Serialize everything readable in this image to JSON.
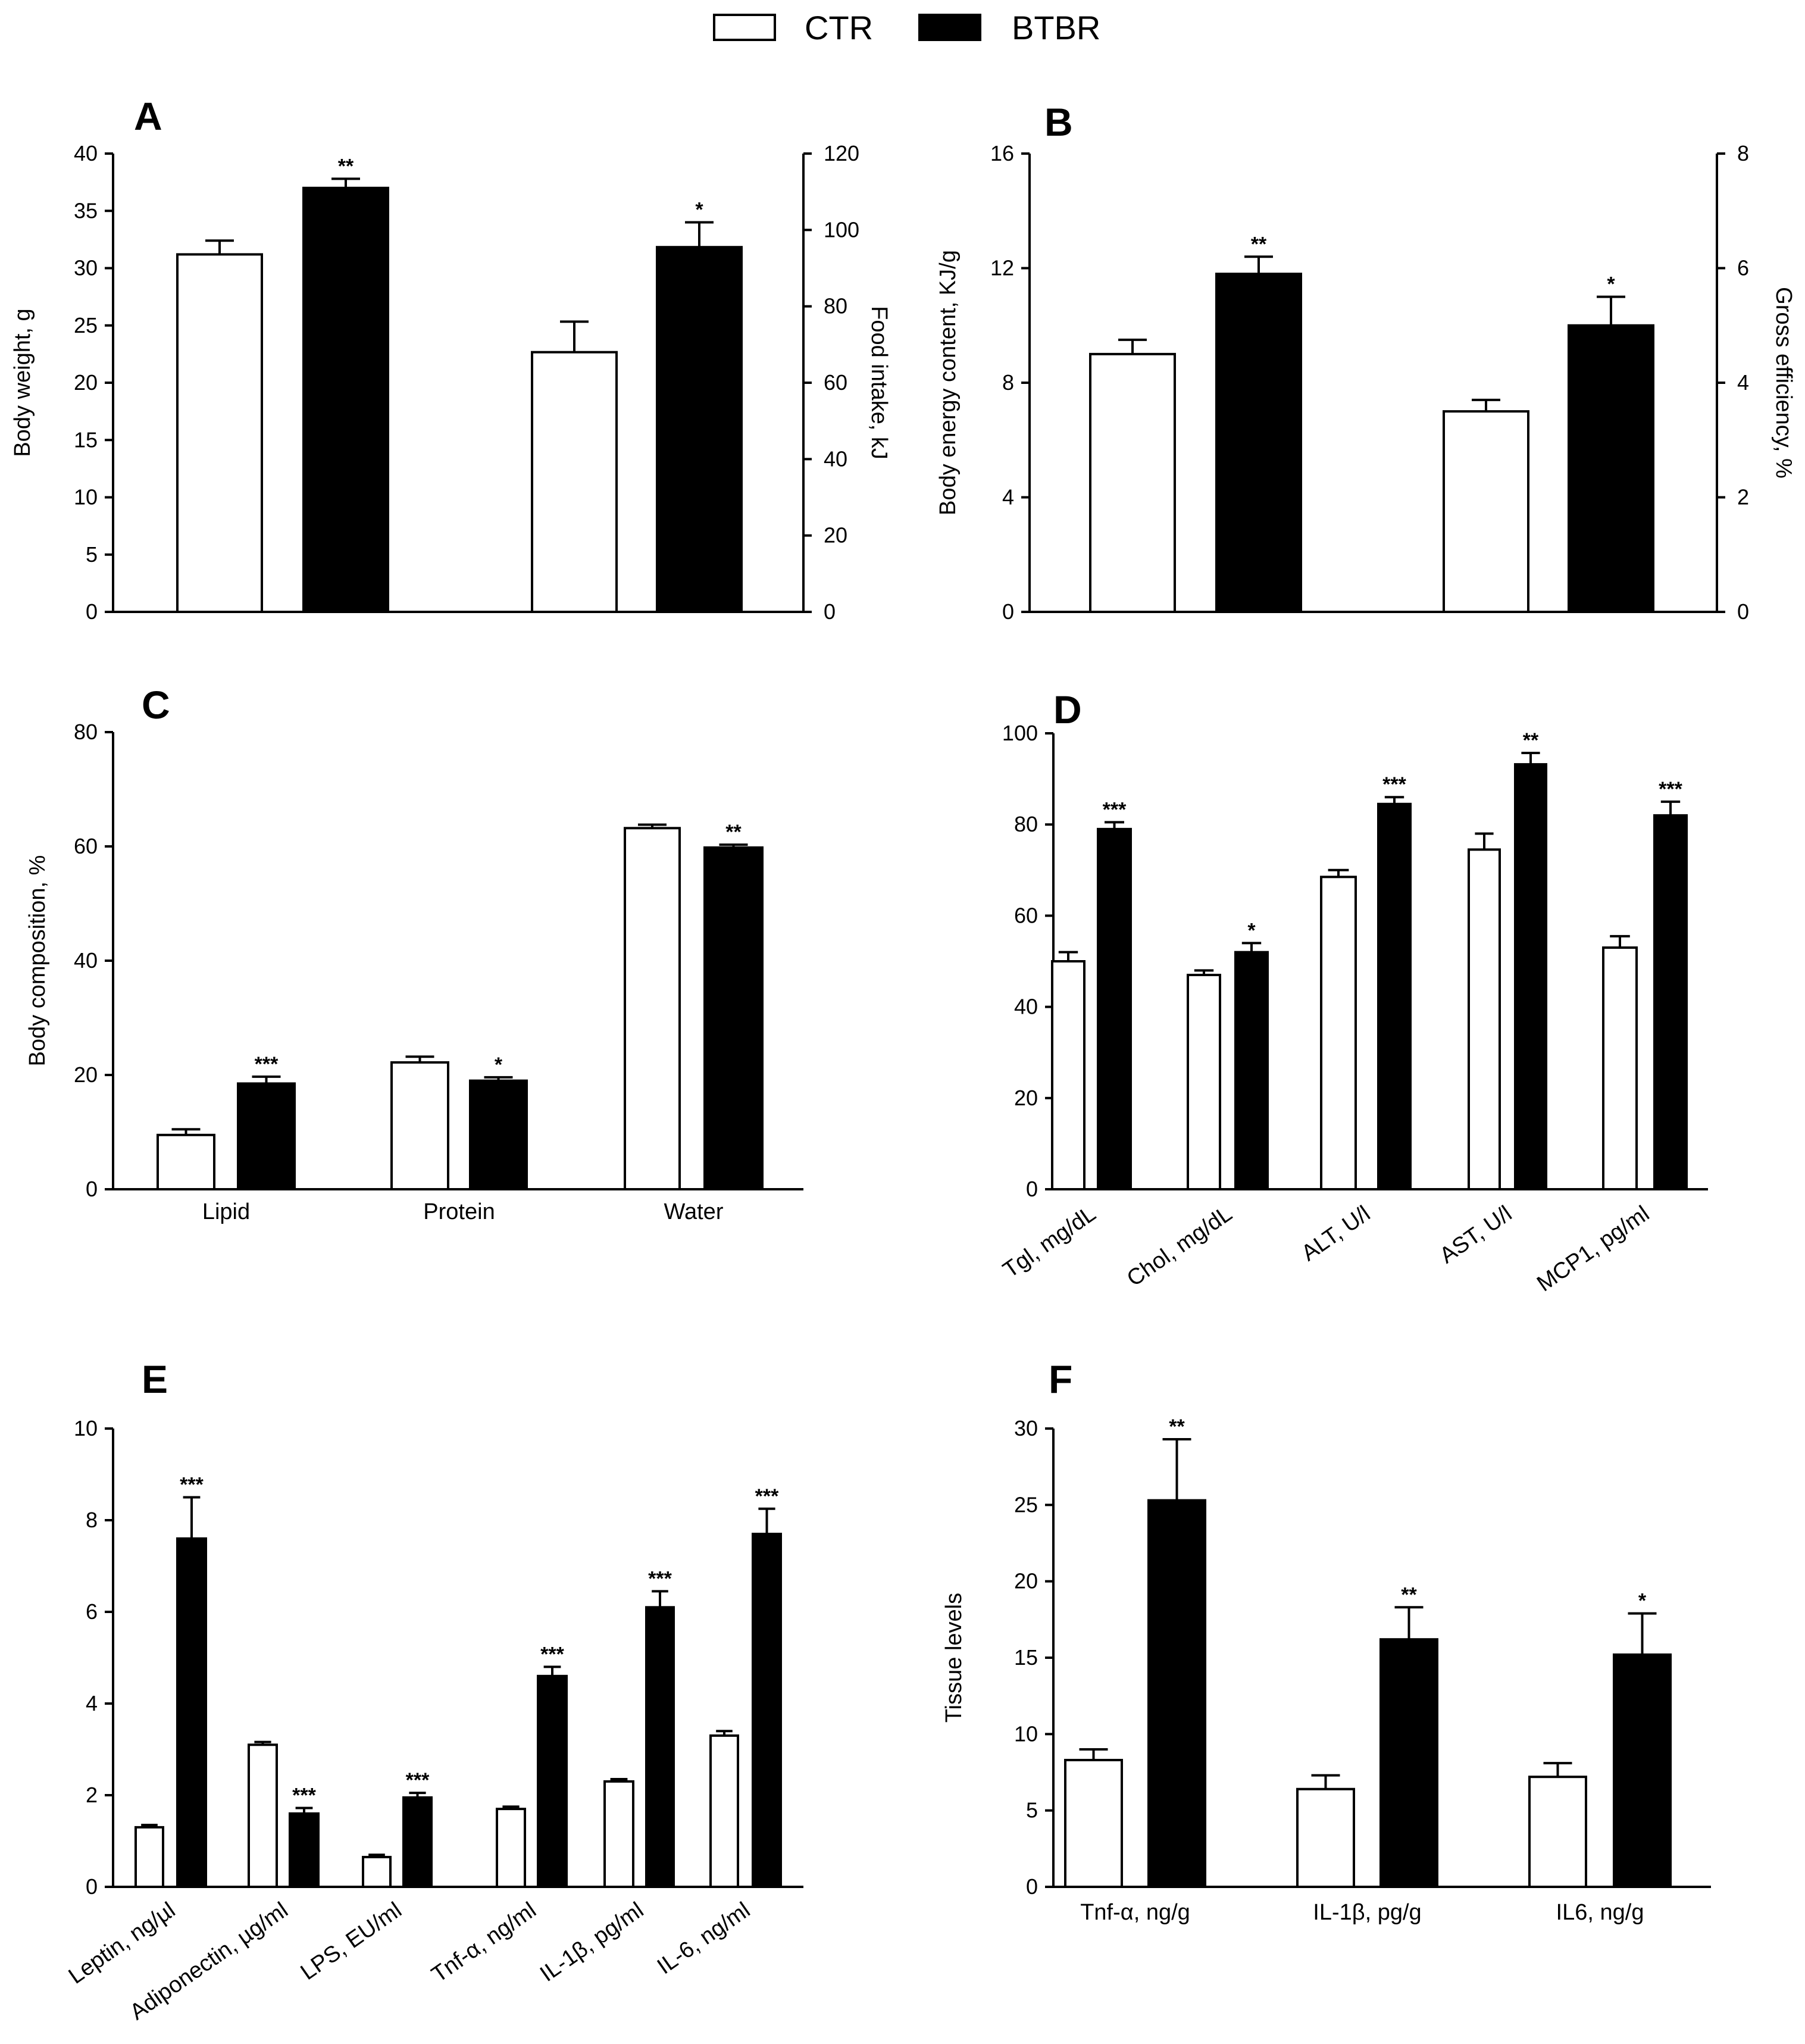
{
  "legend": {
    "items": [
      {
        "label": "CTR",
        "fill": "#ffffff"
      },
      {
        "label": "BTBR",
        "fill": "#000000"
      }
    ]
  },
  "colors": {
    "ctr": "#ffffff",
    "btbr": "#000000",
    "stroke": "#000000"
  },
  "chart_data": [
    {
      "id": "A",
      "type": "bar",
      "panel_label": "A",
      "ylabel": "Body weight, g",
      "yticks": [
        0,
        5,
        10,
        15,
        20,
        25,
        30,
        35,
        40
      ],
      "ylim": [
        0,
        40
      ],
      "ylabel_right": "Food intake, kJ",
      "yticks_right": [
        0,
        20,
        40,
        60,
        80,
        100,
        120
      ],
      "ylim_right": [
        0,
        120
      ],
      "groups": [
        {
          "name": "Body weight",
          "axis": "left",
          "label": "",
          "ctr": {
            "value": 31.2,
            "err": 1.2,
            "sig": ""
          },
          "btbr": {
            "value": 37.0,
            "err": 0.8,
            "sig": "**"
          }
        },
        {
          "name": "Food intake",
          "axis": "right",
          "label": "",
          "ctr": {
            "value": 68,
            "err": 8,
            "sig": ""
          },
          "btbr": {
            "value": 95.5,
            "err": 6.5,
            "sig": "*"
          }
        }
      ]
    },
    {
      "id": "B",
      "type": "bar",
      "panel_label": "B",
      "ylabel": "Body energy content, KJ/g",
      "yticks": [
        0,
        4,
        8,
        12,
        16
      ],
      "ylim": [
        0,
        16
      ],
      "ylabel_right": "Gross efficiency, %",
      "yticks_right": [
        0,
        2,
        4,
        6,
        8
      ],
      "ylim_right": [
        0,
        8
      ],
      "groups": [
        {
          "name": "Body energy content",
          "axis": "left",
          "label": "",
          "ctr": {
            "value": 9.0,
            "err": 0.5,
            "sig": ""
          },
          "btbr": {
            "value": 11.8,
            "err": 0.6,
            "sig": "**"
          }
        },
        {
          "name": "Gross efficiency",
          "axis": "right",
          "label": "",
          "ctr": {
            "value": 3.5,
            "err": 0.2,
            "sig": ""
          },
          "btbr": {
            "value": 5.0,
            "err": 0.5,
            "sig": "*"
          }
        }
      ]
    },
    {
      "id": "C",
      "type": "bar",
      "panel_label": "C",
      "ylabel": "Body composition, %",
      "yticks": [
        0,
        20,
        40,
        60,
        80
      ],
      "ylim": [
        0,
        80
      ],
      "groups": [
        {
          "name": "Lipid",
          "label": "Lipid",
          "ctr": {
            "value": 9.5,
            "err": 1.0,
            "sig": ""
          },
          "btbr": {
            "value": 18.5,
            "err": 1.2,
            "sig": "***"
          }
        },
        {
          "name": "Protein",
          "label": "Protein",
          "ctr": {
            "value": 22.2,
            "err": 1.0,
            "sig": ""
          },
          "btbr": {
            "value": 19.0,
            "err": 0.6,
            "sig": "*"
          }
        },
        {
          "name": "Water",
          "label": "Water",
          "ctr": {
            "value": 63.2,
            "err": 0.6,
            "sig": ""
          },
          "btbr": {
            "value": 59.8,
            "err": 0.5,
            "sig": "**"
          }
        }
      ]
    },
    {
      "id": "D",
      "type": "bar",
      "panel_label": "D",
      "ylabel": "",
      "yticks": [
        0,
        20,
        40,
        60,
        80,
        100
      ],
      "ylim": [
        0,
        100
      ],
      "groups": [
        {
          "name": "Tgl",
          "label": "Tgl, mg/dL",
          "ctr": {
            "value": 50,
            "err": 2,
            "sig": ""
          },
          "btbr": {
            "value": 79,
            "err": 1.5,
            "sig": "***"
          }
        },
        {
          "name": "Chol",
          "label": "Chol, mg/dL",
          "ctr": {
            "value": 47,
            "err": 1,
            "sig": ""
          },
          "btbr": {
            "value": 52,
            "err": 2,
            "sig": "*"
          }
        },
        {
          "name": "ALT",
          "label": "ALT, U/l",
          "ctr": {
            "value": 68.5,
            "err": 1.5,
            "sig": ""
          },
          "btbr": {
            "value": 84.5,
            "err": 1.5,
            "sig": "***"
          }
        },
        {
          "name": "AST",
          "label": "AST, U/l",
          "ctr": {
            "value": 74.5,
            "err": 3.5,
            "sig": ""
          },
          "btbr": {
            "value": 93.2,
            "err": 2.5,
            "sig": "**"
          }
        },
        {
          "name": "MCP1",
          "label": "MCP1, pg/ml",
          "ctr": {
            "value": 53,
            "err": 2.5,
            "sig": ""
          },
          "btbr": {
            "value": 82,
            "err": 3,
            "sig": "***"
          }
        }
      ]
    },
    {
      "id": "E",
      "type": "bar",
      "panel_label": "E",
      "ylabel": "",
      "yticks": [
        0,
        2,
        4,
        6,
        8,
        10
      ],
      "ylim": [
        0,
        10
      ],
      "groups": [
        {
          "name": "Leptin",
          "label": "Leptin, ng/µl",
          "ctr": {
            "value": 1.3,
            "err": 0.05,
            "sig": ""
          },
          "btbr": {
            "value": 7.6,
            "err": 0.9,
            "sig": "***"
          }
        },
        {
          "name": "Adiponectin",
          "label": "Adiponectin, µg/ml",
          "ctr": {
            "value": 3.1,
            "err": 0.06,
            "sig": ""
          },
          "btbr": {
            "value": 1.6,
            "err": 0.12,
            "sig": "***"
          }
        },
        {
          "name": "LPS",
          "label": "LPS, EU/ml",
          "ctr": {
            "value": 0.65,
            "err": 0.05,
            "sig": ""
          },
          "btbr": {
            "value": 1.95,
            "err": 0.1,
            "sig": "***"
          }
        },
        {
          "name": "Tnf-alpha",
          "label": "Tnf-α, ng/ml",
          "ctr": {
            "value": 1.7,
            "err": 0.05,
            "sig": ""
          },
          "btbr": {
            "value": 4.6,
            "err": 0.2,
            "sig": "***"
          }
        },
        {
          "name": "IL-1beta",
          "label": "IL-1β, pg/ml",
          "ctr": {
            "value": 2.3,
            "err": 0.05,
            "sig": ""
          },
          "btbr": {
            "value": 6.1,
            "err": 0.35,
            "sig": "***"
          }
        },
        {
          "name": "IL-6",
          "label": "IL-6, ng/ml",
          "ctr": {
            "value": 3.3,
            "err": 0.1,
            "sig": ""
          },
          "btbr": {
            "value": 7.7,
            "err": 0.55,
            "sig": "***"
          }
        }
      ]
    },
    {
      "id": "F",
      "type": "bar",
      "panel_label": "F",
      "ylabel": "Tissue levels",
      "yticks": [
        0,
        5,
        10,
        15,
        20,
        25,
        30
      ],
      "ylim": [
        0,
        30
      ],
      "groups": [
        {
          "name": "Tnf-alpha",
          "label": "Tnf-α, ng/g",
          "ctr": {
            "value": 8.3,
            "err": 0.7,
            "sig": ""
          },
          "btbr": {
            "value": 25.3,
            "err": 4.0,
            "sig": "**"
          }
        },
        {
          "name": "IL-1beta",
          "label": "IL-1β, pg/g",
          "ctr": {
            "value": 6.4,
            "err": 0.9,
            "sig": ""
          },
          "btbr": {
            "value": 16.2,
            "err": 2.1,
            "sig": "**"
          }
        },
        {
          "name": "IL6",
          "label": "IL6, ng/g",
          "ctr": {
            "value": 7.2,
            "err": 0.9,
            "sig": ""
          },
          "btbr": {
            "value": 15.2,
            "err": 2.7,
            "sig": "*"
          }
        }
      ]
    }
  ]
}
